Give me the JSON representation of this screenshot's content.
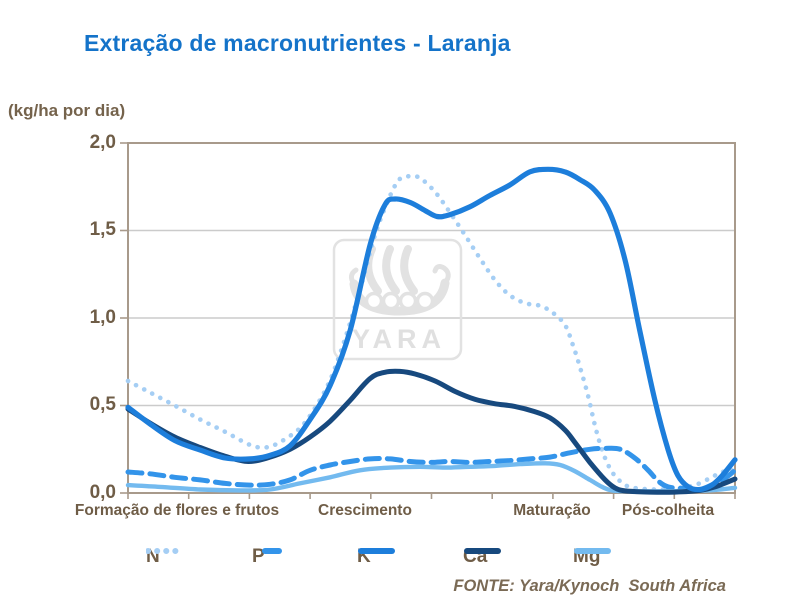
{
  "title": {
    "text": "Extração de macronutrientes - Laranja"
  },
  "axis_unit_label": "(kg/ha por dia)",
  "source_note": "FONTE: Yara/Kynoch  South Africa",
  "watermark": {
    "text": "YARA",
    "icon": "yara-viking-ship-logo"
  },
  "colors": {
    "title": "#1473C9",
    "axis_text": "#6F5D47",
    "axis_line": "#A89A8B",
    "gridline": "#CBCBCB",
    "watermark": "#E2E2E2",
    "background": "#FFFFFF"
  },
  "chart_data": {
    "type": "line",
    "title": "Extração de macronutrientes - Laranja",
    "xlabel": "",
    "ylabel": "(kg/ha por dia)",
    "ylim": [
      0,
      2
    ],
    "yticks": [
      "0,0",
      "0,5",
      "1,0",
      "1,5",
      "2,0"
    ],
    "ytick_values": [
      0,
      0.5,
      1.0,
      1.5,
      2.0
    ],
    "grid": "horizontal",
    "legend_position": "bottom",
    "x_axis_note": "season progress in % across growth stages",
    "x_stage_labels": [
      {
        "label": "Formação de flores e frutos",
        "x_pct": 8.1
      },
      {
        "label": "Crescimento",
        "x_pct": 39.0
      },
      {
        "label": "Maturação",
        "x_pct": 69.9
      },
      {
        "label": "Pós-colheita",
        "x_pct": 89.0
      }
    ],
    "series": [
      {
        "name": "N",
        "style": "dotted",
        "color": "#A5CEF4",
        "width": 4.6,
        "dash": "0.1 9",
        "points": [
          [
            0,
            0.64
          ],
          [
            3.6,
            0.575
          ],
          [
            7.7,
            0.5
          ],
          [
            11.9,
            0.42
          ],
          [
            16,
            0.35
          ],
          [
            20.1,
            0.275
          ],
          [
            22.6,
            0.26
          ],
          [
            25,
            0.29
          ],
          [
            28.3,
            0.37
          ],
          [
            30.8,
            0.485
          ],
          [
            33.3,
            0.645
          ],
          [
            35.7,
            0.875
          ],
          [
            38.2,
            1.16
          ],
          [
            40.7,
            1.475
          ],
          [
            43.2,
            1.7
          ],
          [
            44.8,
            1.795
          ],
          [
            46.5,
            1.81
          ],
          [
            48.1,
            1.8
          ],
          [
            50.6,
            1.72
          ],
          [
            53,
            1.605
          ],
          [
            55.5,
            1.475
          ],
          [
            58,
            1.34
          ],
          [
            60.5,
            1.215
          ],
          [
            62.9,
            1.13
          ],
          [
            65.4,
            1.085
          ],
          [
            67.9,
            1.07
          ],
          [
            70,
            1.03
          ],
          [
            72,
            0.96
          ],
          [
            73.3,
            0.845
          ],
          [
            74.5,
            0.715
          ],
          [
            75.8,
            0.555
          ],
          [
            76.9,
            0.39
          ],
          [
            78.1,
            0.245
          ],
          [
            79.4,
            0.14
          ],
          [
            80.7,
            0.08
          ],
          [
            82.2,
            0.04
          ],
          [
            84.3,
            0.025
          ],
          [
            87.6,
            0.02
          ],
          [
            90.9,
            0.03
          ],
          [
            93.4,
            0.045
          ],
          [
            95.9,
            0.085
          ],
          [
            97.9,
            0.12
          ],
          [
            100,
            0.13
          ]
        ]
      },
      {
        "name": "P",
        "style": "dashed",
        "color": "#3394EA",
        "width": 5,
        "dash": "14 8",
        "points": [
          [
            0,
            0.12
          ],
          [
            3.6,
            0.11
          ],
          [
            7.7,
            0.09
          ],
          [
            11.9,
            0.075
          ],
          [
            16,
            0.055
          ],
          [
            20.1,
            0.045
          ],
          [
            23.4,
            0.05
          ],
          [
            26.7,
            0.075
          ],
          [
            30,
            0.13
          ],
          [
            33.3,
            0.16
          ],
          [
            36.6,
            0.18
          ],
          [
            39.9,
            0.195
          ],
          [
            43.2,
            0.195
          ],
          [
            46.5,
            0.18
          ],
          [
            49.8,
            0.175
          ],
          [
            53,
            0.18
          ],
          [
            56.3,
            0.175
          ],
          [
            59.6,
            0.18
          ],
          [
            62.9,
            0.185
          ],
          [
            66.2,
            0.195
          ],
          [
            69.5,
            0.205
          ],
          [
            72.8,
            0.23
          ],
          [
            76.1,
            0.25
          ],
          [
            78.6,
            0.255
          ],
          [
            81.1,
            0.25
          ],
          [
            83.5,
            0.2
          ],
          [
            85.7,
            0.13
          ],
          [
            87.3,
            0.07
          ],
          [
            89,
            0.035
          ],
          [
            91.8,
            0.025
          ],
          [
            94.2,
            0.02
          ],
          [
            96.7,
            0.055
          ],
          [
            98.4,
            0.085
          ],
          [
            100,
            0.13
          ]
        ]
      },
      {
        "name": "K",
        "style": "solid",
        "color": "#1D7EDB",
        "width": 5.2,
        "dash": "",
        "points": [
          [
            0,
            0.49
          ],
          [
            3.6,
            0.395
          ],
          [
            7.7,
            0.3
          ],
          [
            11.9,
            0.245
          ],
          [
            16,
            0.2
          ],
          [
            20.1,
            0.195
          ],
          [
            23.4,
            0.215
          ],
          [
            26.7,
            0.27
          ],
          [
            30,
            0.42
          ],
          [
            33.3,
            0.615
          ],
          [
            36.6,
            0.93
          ],
          [
            39.9,
            1.42
          ],
          [
            42.3,
            1.645
          ],
          [
            44,
            1.68
          ],
          [
            46.5,
            1.66
          ],
          [
            48.9,
            1.615
          ],
          [
            50.9,
            1.58
          ],
          [
            53,
            1.59
          ],
          [
            56.3,
            1.635
          ],
          [
            59.6,
            1.7
          ],
          [
            62.9,
            1.76
          ],
          [
            66.2,
            1.835
          ],
          [
            69.2,
            1.85
          ],
          [
            72,
            1.835
          ],
          [
            74.5,
            1.79
          ],
          [
            76.9,
            1.73
          ],
          [
            79.4,
            1.6
          ],
          [
            81.9,
            1.33
          ],
          [
            84.3,
            0.93
          ],
          [
            86.8,
            0.53
          ],
          [
            89,
            0.245
          ],
          [
            90.6,
            0.1
          ],
          [
            92.3,
            0.035
          ],
          [
            94.2,
            0.02
          ],
          [
            96.2,
            0.045
          ],
          [
            97.9,
            0.1
          ],
          [
            100,
            0.19
          ]
        ]
      },
      {
        "name": "Ca",
        "style": "solid",
        "color": "#17497E",
        "width": 5,
        "dash": "",
        "points": [
          [
            0,
            0.48
          ],
          [
            3.6,
            0.4
          ],
          [
            7.7,
            0.32
          ],
          [
            11.9,
            0.26
          ],
          [
            16,
            0.21
          ],
          [
            19.8,
            0.18
          ],
          [
            23.4,
            0.205
          ],
          [
            26.7,
            0.25
          ],
          [
            30,
            0.32
          ],
          [
            33.3,
            0.41
          ],
          [
            36.6,
            0.53
          ],
          [
            39.9,
            0.655
          ],
          [
            42.3,
            0.69
          ],
          [
            44.8,
            0.695
          ],
          [
            47.3,
            0.68
          ],
          [
            50.6,
            0.64
          ],
          [
            53.9,
            0.58
          ],
          [
            57.2,
            0.535
          ],
          [
            60.5,
            0.51
          ],
          [
            63.7,
            0.495
          ],
          [
            67,
            0.465
          ],
          [
            69.5,
            0.43
          ],
          [
            72,
            0.36
          ],
          [
            73.6,
            0.29
          ],
          [
            76.1,
            0.175
          ],
          [
            78.6,
            0.075
          ],
          [
            80.2,
            0.03
          ],
          [
            81.9,
            0.012
          ],
          [
            86,
            0.005
          ],
          [
            90.1,
            0.005
          ],
          [
            94.2,
            0.015
          ],
          [
            96.7,
            0.035
          ],
          [
            100,
            0.08
          ]
        ]
      },
      {
        "name": "Mg",
        "style": "solid",
        "color": "#73BAEF",
        "width": 4.4,
        "dash": "",
        "points": [
          [
            0,
            0.045
          ],
          [
            5.3,
            0.035
          ],
          [
            11.9,
            0.02
          ],
          [
            18.5,
            0.015
          ],
          [
            23.4,
            0.02
          ],
          [
            28.3,
            0.055
          ],
          [
            33.3,
            0.09
          ],
          [
            38.2,
            0.13
          ],
          [
            43.2,
            0.145
          ],
          [
            48.1,
            0.15
          ],
          [
            52.2,
            0.145
          ],
          [
            56.3,
            0.15
          ],
          [
            60.5,
            0.155
          ],
          [
            64.6,
            0.165
          ],
          [
            68.7,
            0.17
          ],
          [
            71.2,
            0.16
          ],
          [
            73.6,
            0.125
          ],
          [
            76.1,
            0.075
          ],
          [
            78.1,
            0.035
          ],
          [
            79.7,
            0.015
          ],
          [
            82.7,
            0.01
          ],
          [
            87.6,
            0.01
          ],
          [
            92.6,
            0.012
          ],
          [
            96.7,
            0.018
          ],
          [
            100,
            0.03
          ]
        ]
      }
    ]
  }
}
